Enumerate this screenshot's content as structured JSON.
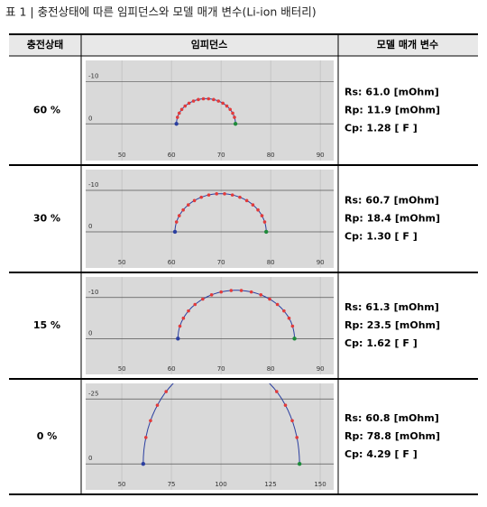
{
  "title": "표 1 | 충전상태에 따른 임피던스와 모델 매개 변수(Li-ion 배터리)",
  "table": {
    "headers": [
      "충전상태",
      "임피던스",
      "모델 매개 변수"
    ],
    "rows": [
      {
        "soc": "60 %",
        "plot": {
          "xlim": [
            42.7,
            92.7
          ],
          "ylim": [
            8.7,
            -15
          ],
          "xticks": [
            50,
            60,
            70,
            80,
            90
          ],
          "yticks": [
            -10,
            0
          ]
        },
        "params": [
          {
            "name": "Rs:",
            "value": 61.0,
            "label": "61.0",
            "unit": "[mOhm]"
          },
          {
            "name": "Rp:",
            "value": 11.9,
            "label": "11.9",
            "unit": "[mOhm]"
          },
          {
            "name": "Cp:",
            "value": 1.28,
            "label": "1.28",
            "unit": "[ F ]"
          }
        ]
      },
      {
        "soc": "30 %",
        "plot": {
          "xlim": [
            42.7,
            92.7
          ],
          "ylim": [
            8.7,
            -15
          ],
          "xticks": [
            50,
            60,
            70,
            80,
            90
          ],
          "yticks": [
            -10,
            0
          ]
        },
        "params": [
          {
            "name": "Rs:",
            "value": 60.7,
            "label": "60.7",
            "unit": "[mOhm]"
          },
          {
            "name": "Rp:",
            "value": 18.4,
            "label": "18.4",
            "unit": "[mOhm]"
          },
          {
            "name": "Cp:",
            "value": 1.3,
            "label": "1.30",
            "unit": "[ F ]"
          }
        ]
      },
      {
        "soc": "15 %",
        "plot": {
          "xlim": [
            42.7,
            92.7
          ],
          "ylim": [
            8.7,
            -15
          ],
          "xticks": [
            50,
            60,
            70,
            80,
            90
          ],
          "yticks": [
            -10,
            0
          ]
        },
        "params": [
          {
            "name": "Rs:",
            "value": 61.3,
            "label": "61.3",
            "unit": "[mOhm]"
          },
          {
            "name": "Rp:",
            "value": 23.5,
            "label": "23.5",
            "unit": "[mOhm]"
          },
          {
            "name": "Cp:",
            "value": 1.62,
            "label": "1.62",
            "unit": "[ F ]"
          }
        ]
      },
      {
        "soc": "0 %",
        "plot": {
          "xlim": [
            31.8,
            156.8
          ],
          "ylim": [
            10,
            -31
          ],
          "xticks": [
            50,
            75,
            100,
            125,
            150
          ],
          "yticks": [
            -25,
            0
          ]
        },
        "params": [
          {
            "name": "Rs:",
            "value": 60.8,
            "label": "60.8",
            "unit": "[mOhm]"
          },
          {
            "name": "Rp:",
            "value": 78.8,
            "label": "78.8",
            "unit": "[mOhm]"
          },
          {
            "name": "Cp:",
            "value": 4.29,
            "label": "4.29",
            "unit": "[ F ]"
          }
        ]
      }
    ]
  }
}
